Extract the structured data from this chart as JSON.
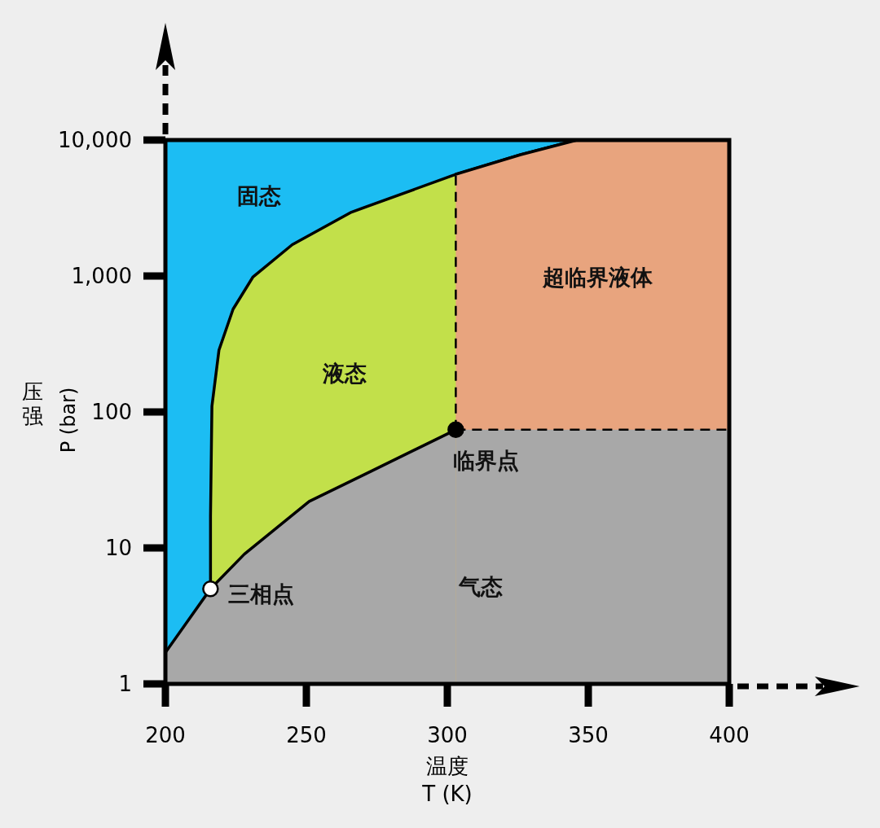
{
  "chart_data": {
    "type": "area",
    "xlabel": "温度 T (K)",
    "ylabel": "压强 P (bar)",
    "log": "y",
    "xlim": [
      200,
      400
    ],
    "ylim": [
      1,
      10000
    ],
    "xticks": [
      200,
      250,
      300,
      350,
      400
    ],
    "yticks": [
      1,
      10,
      100,
      {
        "value": 1000,
        "label": "1,000"
      },
      {
        "value": 10000,
        "label": "10,000"
      }
    ],
    "series": [
      {
        "color": "#1cbdf3",
        "x": [
          200,
          400
        ],
        "values": [
          10000,
          10000
        ]
      },
      {
        "color": "#c2e04a",
        "x": [
          216,
          216,
          216.5,
          219,
          224,
          231,
          245,
          266,
          302,
          326,
          346,
          400
        ],
        "values": [
          5,
          17,
          110,
          285,
          570,
          980,
          1700,
          2950,
          5500,
          7800,
          10000,
          10000
        ]
      },
      {
        "color": "#e8a47e",
        "x": [
          303,
          326,
          346,
          400
        ],
        "values": [
          5600,
          7800,
          10000,
          10000
        ]
      },
      {
        "color": "#a8a8a8",
        "x": [
          200,
          216,
          228,
          251,
          271,
          303
        ],
        "values": [
          1.7,
          5,
          9,
          22,
          35,
          74
        ]
      },
      {
        "color": "#a8a8a8",
        "line_style": "dashed",
        "x": [
          303,
          400
        ],
        "values": [
          74,
          74
        ]
      },
      {
        "type": "line",
        "color": "#000000",
        "line_style": "dashed",
        "x": [
          303,
          303
        ],
        "values": [
          74,
          5600
        ]
      },
      {
        "type": "scatter",
        "color": "#ffffff",
        "marker": "circle",
        "x": [
          216
        ],
        "values": [
          5
        ]
      },
      {
        "type": "scatter",
        "color": "#000000",
        "marker": "circle",
        "x": [
          303
        ],
        "values": [
          74
        ]
      }
    ],
    "annotations": [
      "固态",
      "液态",
      "超临界液体",
      "气态",
      {
        "text": "三相点",
        "x": 216,
        "y": 5
      },
      {
        "text": "临界点",
        "x": 303,
        "y": 74
      }
    ]
  }
}
